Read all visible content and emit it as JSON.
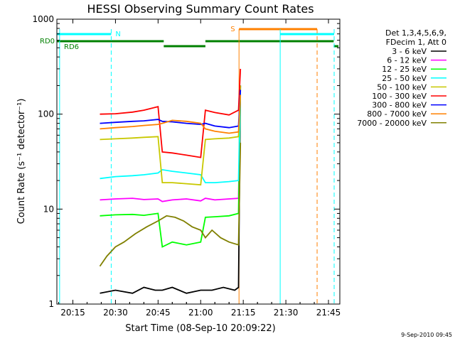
{
  "chart_data": {
    "type": "line",
    "title": "HESSI Observing Summary Count Rates",
    "xlabel": "Start Time (08-Sep-10 20:09:22)",
    "ylabel": "Count Rate (s⁻¹ detector⁻¹)",
    "yscale": "log",
    "ylim": [
      1,
      1000
    ],
    "xlim": [
      "20:09:22",
      "21:49:00"
    ],
    "x_ticks": [
      "20:15",
      "20:30",
      "20:45",
      "21:00",
      "21:15",
      "21:30",
      "21:45"
    ],
    "y_ticks": [
      "1",
      "10",
      "100",
      "1000"
    ],
    "legend_header": [
      "Det 1,3,4,5,6,9,",
      "FDecim 1, Att 0"
    ],
    "legend_placement": "right",
    "timestamp": "9-Sep-2010 09:45",
    "flags": [
      {
        "label": "N",
        "color": "#00ffff",
        "segments": [
          [
            "20:09:22",
            "20:28:30"
          ]
        ]
      },
      {
        "label": "S",
        "color": "#ff8000",
        "segments": [
          [
            "21:13:30",
            "21:41:00"
          ]
        ]
      },
      {
        "label": "",
        "color": "#00ffff",
        "segments": [
          [
            "21:28:00",
            "21:47:00"
          ]
        ]
      },
      {
        "label": "RD0",
        "color": "#008000",
        "segments": [
          [
            "20:09:22",
            "20:47:00"
          ],
          [
            "21:01:40",
            "21:46:50"
          ]
        ]
      },
      {
        "label": "RD6",
        "color": "#008000",
        "segments": [
          [
            "20:47:00",
            "21:01:40"
          ],
          [
            "21:46:50",
            "21:48:30"
          ]
        ]
      }
    ],
    "vlines": [
      {
        "time": "20:10:20",
        "color": "#00ffff",
        "style": "solid"
      },
      {
        "time": "20:28:30",
        "color": "#00ffff",
        "style": "dashed"
      },
      {
        "time": "21:13:30",
        "color": "#ff8000",
        "style": "solid"
      },
      {
        "time": "21:28:00",
        "color": "#00ffff",
        "style": "solid"
      },
      {
        "time": "21:41:00",
        "color": "#ff8000",
        "style": "dashed"
      },
      {
        "time": "21:47:00",
        "color": "#00ffff",
        "style": "dashed"
      }
    ],
    "series": [
      {
        "name": "3 - 6 keV",
        "color": "#000000",
        "points": [
          [
            "20:24:30",
            1.3
          ],
          [
            "20:30",
            1.4
          ],
          [
            "20:36",
            1.3
          ],
          [
            "20:40",
            1.5
          ],
          [
            "20:44",
            1.4
          ],
          [
            "20:46:30",
            1.4
          ],
          [
            "20:50",
            1.5
          ],
          [
            "20:55",
            1.3
          ],
          [
            "21:00",
            1.4
          ],
          [
            "21:04",
            1.4
          ],
          [
            "21:08",
            1.5
          ],
          [
            "21:12",
            1.4
          ],
          [
            "21:13:20",
            1.5
          ],
          [
            "21:14:00",
            200
          ]
        ]
      },
      {
        "name": "6 - 12 keV",
        "color": "#ff00ff",
        "points": [
          [
            "20:24:30",
            12.5
          ],
          [
            "20:30",
            12.8
          ],
          [
            "20:36",
            13
          ],
          [
            "20:40",
            12.6
          ],
          [
            "20:45",
            12.8
          ],
          [
            "20:46:30",
            12
          ],
          [
            "20:50",
            12.5
          ],
          [
            "20:55",
            12.8
          ],
          [
            "21:00",
            12.2
          ],
          [
            "21:01:40",
            13
          ],
          [
            "21:05",
            12.5
          ],
          [
            "21:10",
            12.8
          ],
          [
            "21:13:20",
            13
          ],
          [
            "21:14:00",
            200
          ]
        ]
      },
      {
        "name": "12 - 25 keV",
        "color": "#00ff00",
        "points": [
          [
            "20:24:30",
            8.5
          ],
          [
            "20:30",
            8.7
          ],
          [
            "20:36",
            8.8
          ],
          [
            "20:40",
            8.6
          ],
          [
            "20:45",
            9
          ],
          [
            "20:46:30",
            4
          ],
          [
            "20:50",
            4.5
          ],
          [
            "20:55",
            4.2
          ],
          [
            "21:00",
            4.5
          ],
          [
            "21:01:40",
            8.2
          ],
          [
            "21:05",
            8.3
          ],
          [
            "21:10",
            8.5
          ],
          [
            "21:13:20",
            9
          ],
          [
            "21:14:00",
            200
          ]
        ]
      },
      {
        "name": "25 - 50 keV",
        "color": "#00ffff",
        "points": [
          [
            "20:24:30",
            21
          ],
          [
            "20:30",
            22
          ],
          [
            "20:36",
            22.5
          ],
          [
            "20:40",
            23
          ],
          [
            "20:45",
            24
          ],
          [
            "20:46:30",
            26
          ],
          [
            "20:50",
            25
          ],
          [
            "20:55",
            24
          ],
          [
            "21:00",
            23
          ],
          [
            "21:01:40",
            19
          ],
          [
            "21:05",
            19
          ],
          [
            "21:10",
            19.5
          ],
          [
            "21:13:20",
            20
          ],
          [
            "21:14:00",
            200
          ]
        ]
      },
      {
        "name": "50 - 100 keV",
        "color": "#c8c800",
        "points": [
          [
            "20:24:30",
            54
          ],
          [
            "20:30",
            55
          ],
          [
            "20:36",
            56
          ],
          [
            "20:40",
            57
          ],
          [
            "20:45",
            58
          ],
          [
            "20:46:30",
            19
          ],
          [
            "20:50",
            19
          ],
          [
            "20:55",
            18.5
          ],
          [
            "21:00",
            18
          ],
          [
            "21:01:40",
            54
          ],
          [
            "21:05",
            55
          ],
          [
            "21:10",
            56
          ],
          [
            "21:13:20",
            58
          ],
          [
            "21:14:00",
            200
          ]
        ]
      },
      {
        "name": "100 - 300 keV",
        "color": "#ff0000",
        "points": [
          [
            "20:24:30",
            100
          ],
          [
            "20:30",
            101
          ],
          [
            "20:36",
            105
          ],
          [
            "20:40",
            110
          ],
          [
            "20:45",
            120
          ],
          [
            "20:46:30",
            40
          ],
          [
            "20:50",
            39
          ],
          [
            "20:55",
            37
          ],
          [
            "21:00",
            35
          ],
          [
            "21:01:40",
            110
          ],
          [
            "21:05",
            104
          ],
          [
            "21:10",
            98
          ],
          [
            "21:13:20",
            110
          ],
          [
            "21:14:00",
            300
          ]
        ]
      },
      {
        "name": "300 - 800 keV",
        "color": "#0000ff",
        "points": [
          [
            "20:24:30",
            80
          ],
          [
            "20:30",
            82
          ],
          [
            "20:36",
            84
          ],
          [
            "20:40",
            85
          ],
          [
            "20:45",
            88
          ],
          [
            "20:46:30",
            84
          ],
          [
            "20:50",
            83
          ],
          [
            "20:55",
            80
          ],
          [
            "21:00",
            78
          ],
          [
            "21:01:40",
            80
          ],
          [
            "21:05",
            75
          ],
          [
            "21:10",
            72
          ],
          [
            "21:13:20",
            75
          ],
          [
            "21:14:00",
            180
          ]
        ]
      },
      {
        "name": "800 - 7000 keV",
        "color": "#ff8000",
        "points": [
          [
            "20:24:30",
            70
          ],
          [
            "20:30",
            72
          ],
          [
            "20:36",
            74
          ],
          [
            "20:40",
            76
          ],
          [
            "20:45",
            78
          ],
          [
            "20:46:30",
            80
          ],
          [
            "20:50",
            86
          ],
          [
            "20:55",
            84
          ],
          [
            "21:00",
            80
          ],
          [
            "21:01:40",
            70
          ],
          [
            "21:05",
            66
          ],
          [
            "21:10",
            63
          ],
          [
            "21:13:20",
            65
          ],
          [
            "21:14:00",
            160
          ]
        ]
      },
      {
        "name": "7000 - 20000 keV",
        "color": "#808000",
        "points": [
          [
            "20:24:30",
            2.5
          ],
          [
            "20:27",
            3.2
          ],
          [
            "20:30",
            4
          ],
          [
            "20:33",
            4.5
          ],
          [
            "20:37",
            5.5
          ],
          [
            "20:41",
            6.5
          ],
          [
            "20:45",
            7.5
          ],
          [
            "20:48",
            8.5
          ],
          [
            "20:51",
            8.2
          ],
          [
            "20:54",
            7.5
          ],
          [
            "20:57",
            6.5
          ],
          [
            "21:00",
            6
          ],
          [
            "21:01:40",
            5
          ],
          [
            "21:04",
            6
          ],
          [
            "21:07",
            5
          ],
          [
            "21:10",
            4.5
          ],
          [
            "21:13:20",
            4.2
          ],
          [
            "21:14:00",
            50
          ]
        ]
      }
    ]
  }
}
